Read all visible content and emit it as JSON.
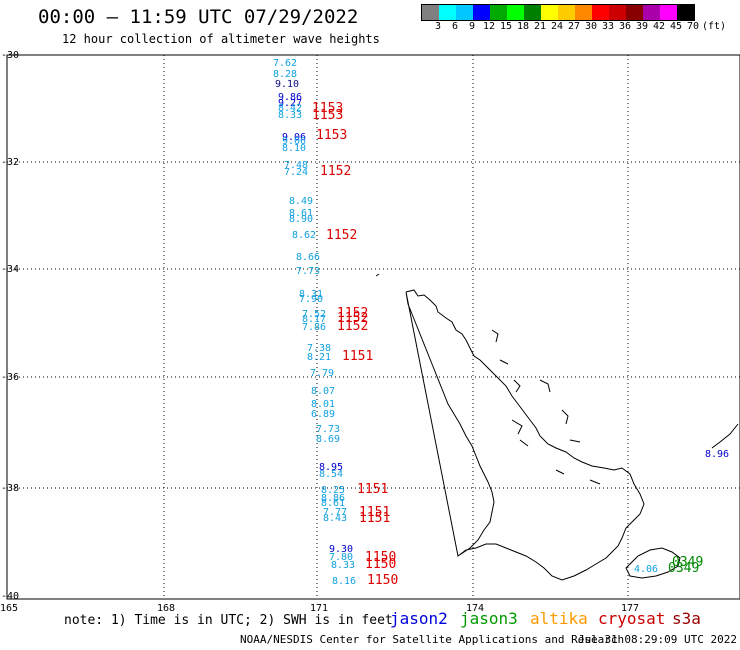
{
  "header": {
    "title": "00:00 – 11:59 UTC 07/29/2022",
    "subtitle": "12 hour collection of altimeter wave heights"
  },
  "legend": {
    "colors": [
      "#808080",
      "#00ffff",
      "#00c8ff",
      "#0000ff",
      "#00aa00",
      "#00ff00",
      "#008000",
      "#ffff00",
      "#ffcc00",
      "#ff8800",
      "#ff0000",
      "#cc0000",
      "#880000",
      "#aa00aa",
      "#ff00ff",
      "#000000"
    ],
    "labels": [
      "3",
      "6",
      "9",
      "12",
      "15",
      "18",
      "21",
      "24",
      "27",
      "30",
      "33",
      "36",
      "39",
      "42",
      "45",
      "70",
      "(ft)"
    ]
  },
  "map": {
    "lat_labels": [
      "-30",
      "-32",
      "-34",
      "-36",
      "-38",
      "-40"
    ],
    "lon_labels": [
      "165",
      "168",
      "171",
      "174",
      "177"
    ],
    "wave_heights": [
      {
        "v": "7.62",
        "c": "#10a0e0"
      },
      {
        "v": "8.28",
        "c": "#10a0e0"
      },
      {
        "v": "9.10",
        "c": "#0a0a80"
      },
      {
        "v": "9.86",
        "c": "#0000cc"
      },
      {
        "v": "9.27",
        "c": "#0000cc"
      },
      {
        "v": "8.42",
        "c": "#10a0e0"
      },
      {
        "v": "8.33",
        "c": "#10a0e0"
      },
      {
        "v": "9.06",
        "c": "#0000cc"
      },
      {
        "v": "9.06",
        "c": "#10a0e0"
      },
      {
        "v": "8.10",
        "c": "#10a0e0"
      },
      {
        "v": "7.48",
        "c": "#10a0e0"
      },
      {
        "v": "7.24",
        "c": "#10a0e0"
      },
      {
        "v": "8.49",
        "c": "#10a0e0"
      },
      {
        "v": "8.61",
        "c": "#10a0e0"
      },
      {
        "v": "8.90",
        "c": "#10a0e0"
      },
      {
        "v": "8.62",
        "c": "#10a0e0"
      },
      {
        "v": "8.66",
        "c": "#10a0e0"
      },
      {
        "v": "7.73",
        "c": "#10a0e0"
      },
      {
        "v": "8.31",
        "c": "#10a0e0"
      },
      {
        "v": "7.90",
        "c": "#10a0e0"
      },
      {
        "v": "7.52",
        "c": "#10a0e0"
      },
      {
        "v": "8.17",
        "c": "#10a0e0"
      },
      {
        "v": "7.86",
        "c": "#10a0e0"
      },
      {
        "v": "7.38",
        "c": "#10a0e0"
      },
      {
        "v": "8.21",
        "c": "#10a0e0"
      },
      {
        "v": "7.79",
        "c": "#10a0e0"
      },
      {
        "v": "8.07",
        "c": "#10a0e0"
      },
      {
        "v": "8.01",
        "c": "#10a0e0"
      },
      {
        "v": "6.89",
        "c": "#10a0e0"
      },
      {
        "v": "7.73",
        "c": "#10a0e0"
      },
      {
        "v": "8.69",
        "c": "#10a0e0"
      },
      {
        "v": "8.95",
        "c": "#0000cc"
      },
      {
        "v": "8.54",
        "c": "#10a0e0"
      },
      {
        "v": "8.25",
        "c": "#10a0e0"
      },
      {
        "v": "8.86",
        "c": "#10a0e0"
      },
      {
        "v": "8.61",
        "c": "#10a0e0"
      },
      {
        "v": "7.77",
        "c": "#10a0e0"
      },
      {
        "v": "8.43",
        "c": "#10a0e0"
      },
      {
        "v": "9.30",
        "c": "#0000cc"
      },
      {
        "v": "7.80",
        "c": "#10a0e0"
      },
      {
        "v": "8.33",
        "c": "#10a0e0"
      },
      {
        "v": "8.16",
        "c": "#10a0e0"
      },
      {
        "v": "4.06",
        "c": "#10a0e0"
      },
      {
        "v": "8.96",
        "c": "#0000cc"
      }
    ],
    "time_labels": [
      {
        "v": "1153",
        "c": "#dd0000"
      },
      {
        "v": "1153",
        "c": "#dd0000"
      },
      {
        "v": "1153",
        "c": "#dd0000"
      },
      {
        "v": "1152",
        "c": "#dd0000"
      },
      {
        "v": "1152",
        "c": "#dd0000"
      },
      {
        "v": "1152",
        "c": "#dd0000"
      },
      {
        "v": "1152",
        "c": "#dd0000"
      },
      {
        "v": "1152",
        "c": "#dd0000"
      },
      {
        "v": "1151",
        "c": "#dd0000"
      },
      {
        "v": "1151",
        "c": "#dd0000"
      },
      {
        "v": "1151",
        "c": "#dd0000"
      },
      {
        "v": "1151",
        "c": "#dd0000"
      },
      {
        "v": "1150",
        "c": "#dd0000"
      },
      {
        "v": "1150",
        "c": "#dd0000"
      },
      {
        "v": "1150",
        "c": "#dd0000"
      },
      {
        "v": "0349",
        "c": "#008800"
      },
      {
        "v": "0349",
        "c": "#008800"
      }
    ]
  },
  "note": "note: 1) Time is in UTC; 2) SWH is in feet",
  "satellites": [
    {
      "name": "jason2",
      "color": "#0000dd"
    },
    {
      "name": "jason3",
      "color": "#009900"
    },
    {
      "name": "altika",
      "color": "#ff9900"
    },
    {
      "name": "cryosat",
      "color": "#cc0000"
    },
    {
      "name": "s3a",
      "color": "#990000"
    }
  ],
  "footer": "NOAA/NESDIS Center for Satellite Applications and Research",
  "timestamp": "Jul 31 08:29:09 UTC 2022"
}
